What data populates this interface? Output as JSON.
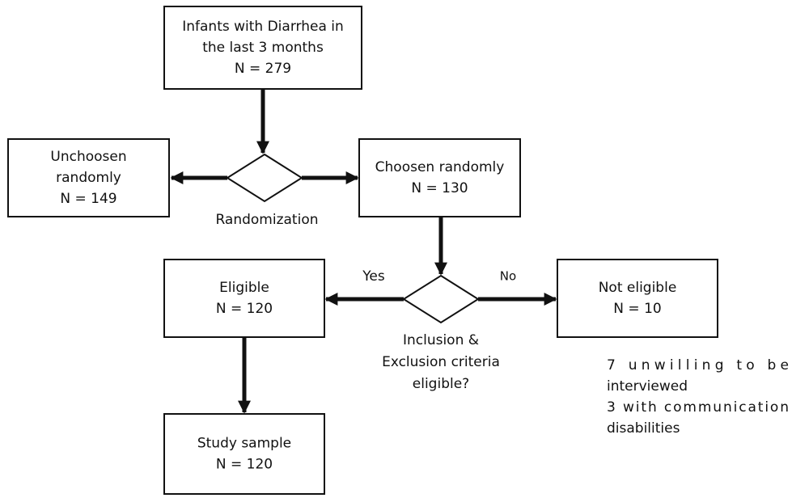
{
  "nodes": [
    {
      "lines": [
        "Infants with Diarrhea in",
        "the last 3 months",
        "N = 279"
      ]
    },
    {
      "lines": [
        "Unchoosen",
        "randomly",
        "N = 149"
      ]
    },
    {
      "lines": [
        "Choosen randomly",
        "N = 130"
      ]
    },
    {
      "lines": [
        "Eligible",
        "N = 120"
      ]
    },
    {
      "lines": [
        "Not eligible",
        "N = 10"
      ]
    },
    {
      "lines": [
        "Study sample",
        "N = 120"
      ]
    }
  ],
  "decisions": [
    {
      "label": [
        "Randomization"
      ]
    },
    {
      "label": [
        "Inclusion &",
        "Exclusion criteria",
        "eligible?"
      ],
      "yes": "Yes",
      "no": "No"
    }
  ],
  "notes": [
    "7 unwilling to be",
    "interviewed",
    "3 with communication",
    "disabilities"
  ]
}
